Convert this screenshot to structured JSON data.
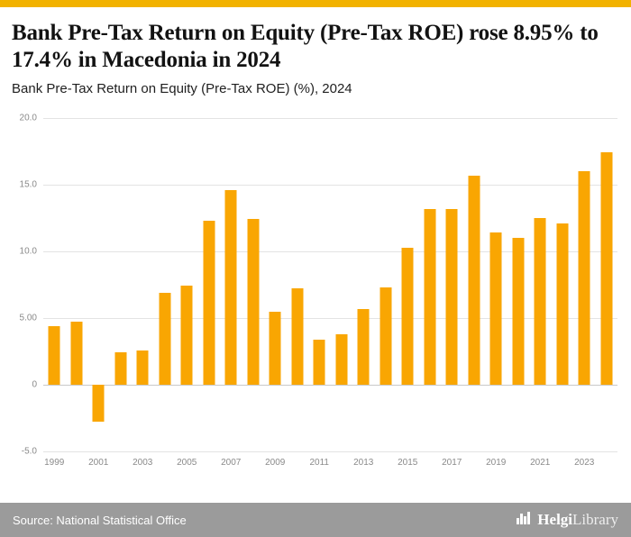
{
  "accent": {
    "top_strip_color": "#f2b200"
  },
  "chart_data": {
    "type": "bar",
    "title": "Bank Pre-Tax Return on Equity (Pre-Tax ROE) rose 8.95% to 17.4% in Macedonia in 2024",
    "subtitle": "Bank Pre-Tax Return on Equity (Pre-Tax ROE) (%), 2024",
    "x": [
      1999,
      2000,
      2001,
      2002,
      2003,
      2004,
      2005,
      2006,
      2007,
      2008,
      2009,
      2010,
      2011,
      2012,
      2013,
      2014,
      2015,
      2016,
      2017,
      2018,
      2019,
      2020,
      2021,
      2022,
      2023,
      2024
    ],
    "values": [
      4.4,
      4.7,
      -2.8,
      2.4,
      2.6,
      6.9,
      7.4,
      12.3,
      14.6,
      12.4,
      5.5,
      7.2,
      3.4,
      3.8,
      5.7,
      7.3,
      10.3,
      13.2,
      13.2,
      15.7,
      11.4,
      11.0,
      12.5,
      12.1,
      16.0,
      17.4
    ],
    "bar_color": "#f9a602",
    "ylim": [
      -5,
      20
    ],
    "yticks": [
      {
        "value": 20,
        "label": "20.0"
      },
      {
        "value": 15,
        "label": "15.0"
      },
      {
        "value": 10,
        "label": "10.0"
      },
      {
        "value": 5,
        "label": "5.00"
      },
      {
        "value": 0,
        "label": "0"
      },
      {
        "value": -5,
        "label": "-5.0"
      }
    ],
    "xtick_years": [
      1999,
      2001,
      2003,
      2005,
      2007,
      2009,
      2011,
      2013,
      2015,
      2017,
      2019,
      2021,
      2023
    ],
    "grid": "horizontal",
    "legend_position": "none"
  },
  "footer": {
    "source": "Source: National Statistical Office",
    "logo_brand_bold": "Helgi",
    "logo_brand_light": "Library"
  }
}
